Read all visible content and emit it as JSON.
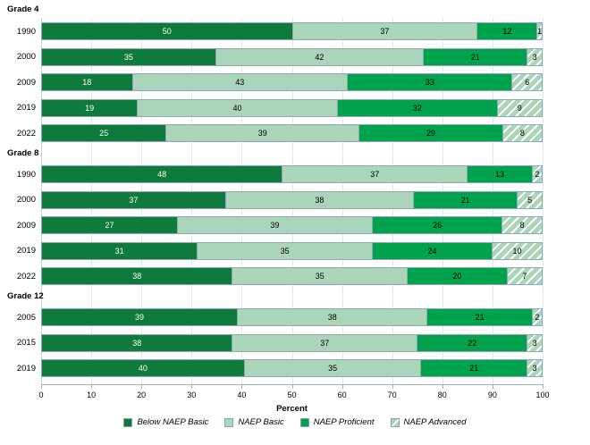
{
  "chart_data": {
    "type": "bar",
    "stacked": true,
    "orientation": "horizontal",
    "xlabel": "Percent",
    "xlim": [
      0,
      100
    ],
    "xticks": [
      0,
      10,
      20,
      30,
      40,
      50,
      60,
      70,
      80,
      90,
      100
    ],
    "grid": true,
    "legend_position": "bottom",
    "series": [
      {
        "name": "Below NAEP Basic",
        "color": "#0e7a3c",
        "pattern": "solid",
        "value_text_color": "#ffffff"
      },
      {
        "name": "NAEP Basic",
        "color": "#abd5b9",
        "pattern": "solid",
        "value_text_color": "#000000"
      },
      {
        "name": "NAEP Proficient",
        "color": "#00a24d",
        "pattern": "solid",
        "value_text_color": "#000000"
      },
      {
        "name": "NAEP Advanced",
        "color": "#abd5b9",
        "pattern": "diagonal-stripes",
        "value_text_color": "#000000"
      }
    ],
    "groups": [
      {
        "label": "Grade 4",
        "rows": [
          {
            "year": "1990",
            "values": [
              50,
              37,
              12,
              1
            ]
          },
          {
            "year": "2000",
            "values": [
              35,
              42,
              21,
              3
            ]
          },
          {
            "year": "2009",
            "values": [
              18,
              43,
              33,
              6
            ]
          },
          {
            "year": "2019",
            "values": [
              19,
              40,
              32,
              9
            ]
          },
          {
            "year": "2022",
            "values": [
              25,
              39,
              29,
              8
            ]
          }
        ]
      },
      {
        "label": "Grade 8",
        "rows": [
          {
            "year": "1990",
            "values": [
              48,
              37,
              13,
              2
            ]
          },
          {
            "year": "2000",
            "values": [
              37,
              38,
              21,
              5
            ]
          },
          {
            "year": "2009",
            "values": [
              27,
              39,
              26,
              8
            ]
          },
          {
            "year": "2019",
            "values": [
              31,
              35,
              24,
              10
            ]
          },
          {
            "year": "2022",
            "values": [
              38,
              35,
              20,
              7
            ]
          }
        ]
      },
      {
        "label": "Grade 12",
        "rows": [
          {
            "year": "2005",
            "values": [
              39,
              38,
              21,
              2
            ]
          },
          {
            "year": "2015",
            "values": [
              38,
              37,
              22,
              3
            ]
          },
          {
            "year": "2019",
            "values": [
              40,
              35,
              21,
              3
            ]
          }
        ]
      }
    ]
  }
}
